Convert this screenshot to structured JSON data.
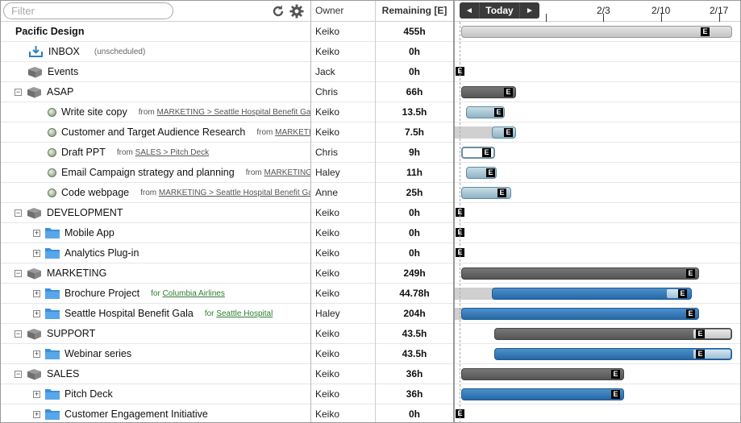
{
  "header": {
    "filter_placeholder": "Filter",
    "owner_label": "Owner",
    "remaining_label": "Remaining [E]",
    "today_label": "Today",
    "prev_glyph": "◄",
    "next_glyph": "►",
    "dates": [
      "2/3",
      "2/10",
      "2/17"
    ]
  },
  "estimate_glyph": "E",
  "colors": {
    "dark_bar": "#5e5e5e",
    "blue_bar": "#2d72b3",
    "task_bar": "#a9c8d5",
    "folder": "#3b8fd9",
    "link_green": "#2e7d32"
  },
  "rows": [
    {
      "title": "Pacific Design",
      "owner": "Keiko",
      "remaining": "455h"
    },
    {
      "title": "INBOX",
      "note": "(unscheduled)",
      "owner": "Keiko",
      "remaining": "0h"
    },
    {
      "title": "Events",
      "owner": "Jack",
      "remaining": "0h"
    },
    {
      "title": "ASAP",
      "owner": "Chris",
      "remaining": "66h"
    },
    {
      "title": "Write site copy",
      "src_prefix": "from",
      "src": "MARKETING  >  Seattle Hospital Benefit Gala",
      "owner": "Keiko",
      "remaining": "13.5h"
    },
    {
      "title": "Customer and Target Audience Research",
      "src_prefix": "from",
      "src": "MARKETING",
      "owner": "Keiko",
      "remaining": "7.5h"
    },
    {
      "title": "Draft PPT",
      "src_prefix": "from",
      "src": "SALES  >  Pitch Deck",
      "owner": "Chris",
      "remaining": "9h"
    },
    {
      "title": "Email Campaign strategy and planning",
      "src_prefix": "from",
      "src": "MARKETING",
      "owner": "Haley",
      "remaining": "11h"
    },
    {
      "title": "Code webpage",
      "src_prefix": "from",
      "src": "MARKETING  >  Seattle Hospital Benefit Gala",
      "owner": "Anne",
      "remaining": "25h"
    },
    {
      "title": "DEVELOPMENT",
      "owner": "Keiko",
      "remaining": "0h"
    },
    {
      "title": "Mobile App",
      "owner": "Keiko",
      "remaining": "0h"
    },
    {
      "title": "Analytics Plug-in",
      "owner": "Keiko",
      "remaining": "0h"
    },
    {
      "title": "MARKETING",
      "owner": "Keiko",
      "remaining": "249h"
    },
    {
      "title": "Brochure Project",
      "src_prefix": "for",
      "src": "Columbia Airlines",
      "owner": "Keiko",
      "remaining": "44.78h"
    },
    {
      "title": "Seattle Hospital Benefit Gala",
      "src_prefix": "for",
      "src": "Seattle Hospital",
      "owner": "Haley",
      "remaining": "204h"
    },
    {
      "title": "SUPPORT",
      "owner": "Keiko",
      "remaining": "43.5h"
    },
    {
      "title": "Webinar series",
      "owner": "Keiko",
      "remaining": "43.5h"
    },
    {
      "title": "SALES",
      "owner": "Keiko",
      "remaining": "36h"
    },
    {
      "title": "Pitch Deck",
      "owner": "Keiko",
      "remaining": "36h"
    },
    {
      "title": "Customer Engagement Initiative",
      "owner": "Keiko",
      "remaining": "0h"
    }
  ]
}
